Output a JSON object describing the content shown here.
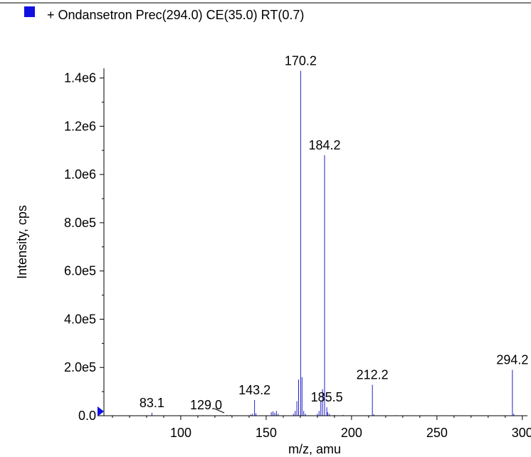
{
  "chart_data": {
    "type": "bar",
    "legend": {
      "label": "+ Ondansetron Prec(294.0) CE(35.0) RT(0.7)",
      "color": "#1010e0",
      "placement": "top-left"
    },
    "title": "",
    "xlabel": "m/z, amu",
    "ylabel": "Intensity, cps",
    "xlim": [
      55,
      303
    ],
    "ylim": [
      0,
      1440000
    ],
    "x_ticks": [
      100,
      150,
      200,
      250,
      300
    ],
    "x_tick_labels": [
      "100",
      "150",
      "200",
      "250",
      "300"
    ],
    "y_ticks": [
      0,
      200000,
      400000,
      600000,
      800000,
      1000000,
      1200000,
      1400000
    ],
    "y_tick_labels": [
      "0.0",
      "2.0e5",
      "4.0e5",
      "6.0e5",
      "8.0e5",
      "1.0e6",
      "1.2e6",
      "1.4e6"
    ],
    "series": [
      {
        "color": "#2020c8",
        "points": [
          [
            83.1,
            12000
          ],
          [
            99.0,
            2000
          ],
          [
            113.0,
            2500
          ],
          [
            127.0,
            3000
          ],
          [
            129.0,
            3000
          ],
          [
            141.0,
            5000
          ],
          [
            142.0,
            8000
          ],
          [
            143.2,
            65000
          ],
          [
            144.0,
            10000
          ],
          [
            153.0,
            15000
          ],
          [
            154.0,
            18000
          ],
          [
            155.0,
            12000
          ],
          [
            156.0,
            20000
          ],
          [
            157.0,
            8000
          ],
          [
            166.0,
            8000
          ],
          [
            167.0,
            20000
          ],
          [
            168.0,
            60000
          ],
          [
            169.0,
            150000
          ],
          [
            170.2,
            1430000
          ],
          [
            171.0,
            160000
          ],
          [
            172.0,
            20000
          ],
          [
            173.0,
            8000
          ],
          [
            180.0,
            8000
          ],
          [
            181.0,
            20000
          ],
          [
            182.0,
            60000
          ],
          [
            183.0,
            110000
          ],
          [
            184.2,
            1080000
          ],
          [
            185.5,
            35000
          ],
          [
            186.0,
            15000
          ],
          [
            187.0,
            8000
          ],
          [
            190.0,
            3000
          ],
          [
            195.0,
            3000
          ],
          [
            212.2,
            128000
          ],
          [
            213.0,
            6000
          ],
          [
            226.0,
            2000
          ],
          [
            294.2,
            190000
          ],
          [
            295.0,
            8000
          ]
        ]
      }
    ],
    "peak_labels": [
      {
        "text": "170.2",
        "x": 170.2,
        "y": 1430000
      },
      {
        "text": "184.2",
        "x": 184.2,
        "y": 1080000
      },
      {
        "text": "294.2",
        "x": 294.2,
        "y": 190000
      },
      {
        "text": "212.2",
        "x": 212.2,
        "y": 128000
      },
      {
        "text": "143.2",
        "x": 143.2,
        "y": 65000
      },
      {
        "text": "185.5",
        "x": 185.5,
        "y": 35000
      },
      {
        "text": "83.1",
        "x": 83.1,
        "y": 12000
      },
      {
        "text": "129.0",
        "x": 129.0,
        "y": 3000
      }
    ]
  }
}
